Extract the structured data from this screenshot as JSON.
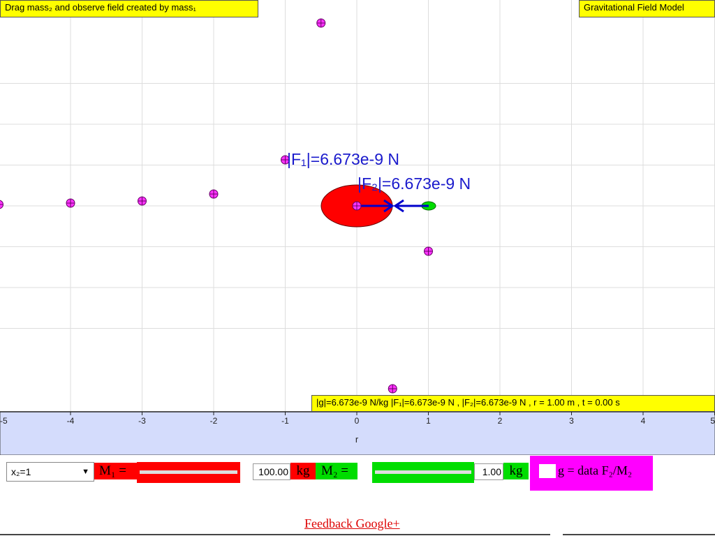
{
  "header": {
    "instruction": "Drag mass₂ and observe field created by mass₁",
    "title": "Gravitational Field Model"
  },
  "status": "|g|=6.673e-9 N/kg |F₁|=6.673e-9 N , |F₂|=6.673e-9 N , r = 1.00 m , t = 0.00 s",
  "labels": {
    "f1": "|F₁|=6.673e-9 N",
    "f2": "|F₂|=6.673e-9 N",
    "xlabel": "r"
  },
  "x_ticks": [
    "-5",
    "-4",
    "-3",
    "-2",
    "-1",
    "0",
    "1",
    "2",
    "3",
    "4",
    "5"
  ],
  "data_points": [
    {
      "x": -5.0,
      "y": 0.02
    },
    {
      "x": -4.0,
      "y": 0.04
    },
    {
      "x": -3.0,
      "y": 0.07
    },
    {
      "x": -2.0,
      "y": 0.17
    },
    {
      "x": -1.0,
      "y": 0.66
    },
    {
      "x": -0.5,
      "y": 2.62
    },
    {
      "x": 1.0,
      "y": -0.65
    },
    {
      "x": 0.5,
      "y": -2.62
    }
  ],
  "controls": {
    "select_value": "x₂=1",
    "m1_label": "M₁ =",
    "m1_value": "100.00",
    "m1_unit": "kg",
    "m2_label": "M₂ =",
    "m2_value": "1.00",
    "m2_unit": "kg",
    "checkbox_label": "g = data F₂/M₂"
  },
  "footer": {
    "link": "Feedback Google+"
  },
  "colors": {
    "m1": "#ff0000",
    "m2": "#00dd00",
    "tag": "#ffff00",
    "axis_band": "#d4dcfc",
    "checkbox_panel": "#ff00ff",
    "arrow": "#0000cc"
  }
}
